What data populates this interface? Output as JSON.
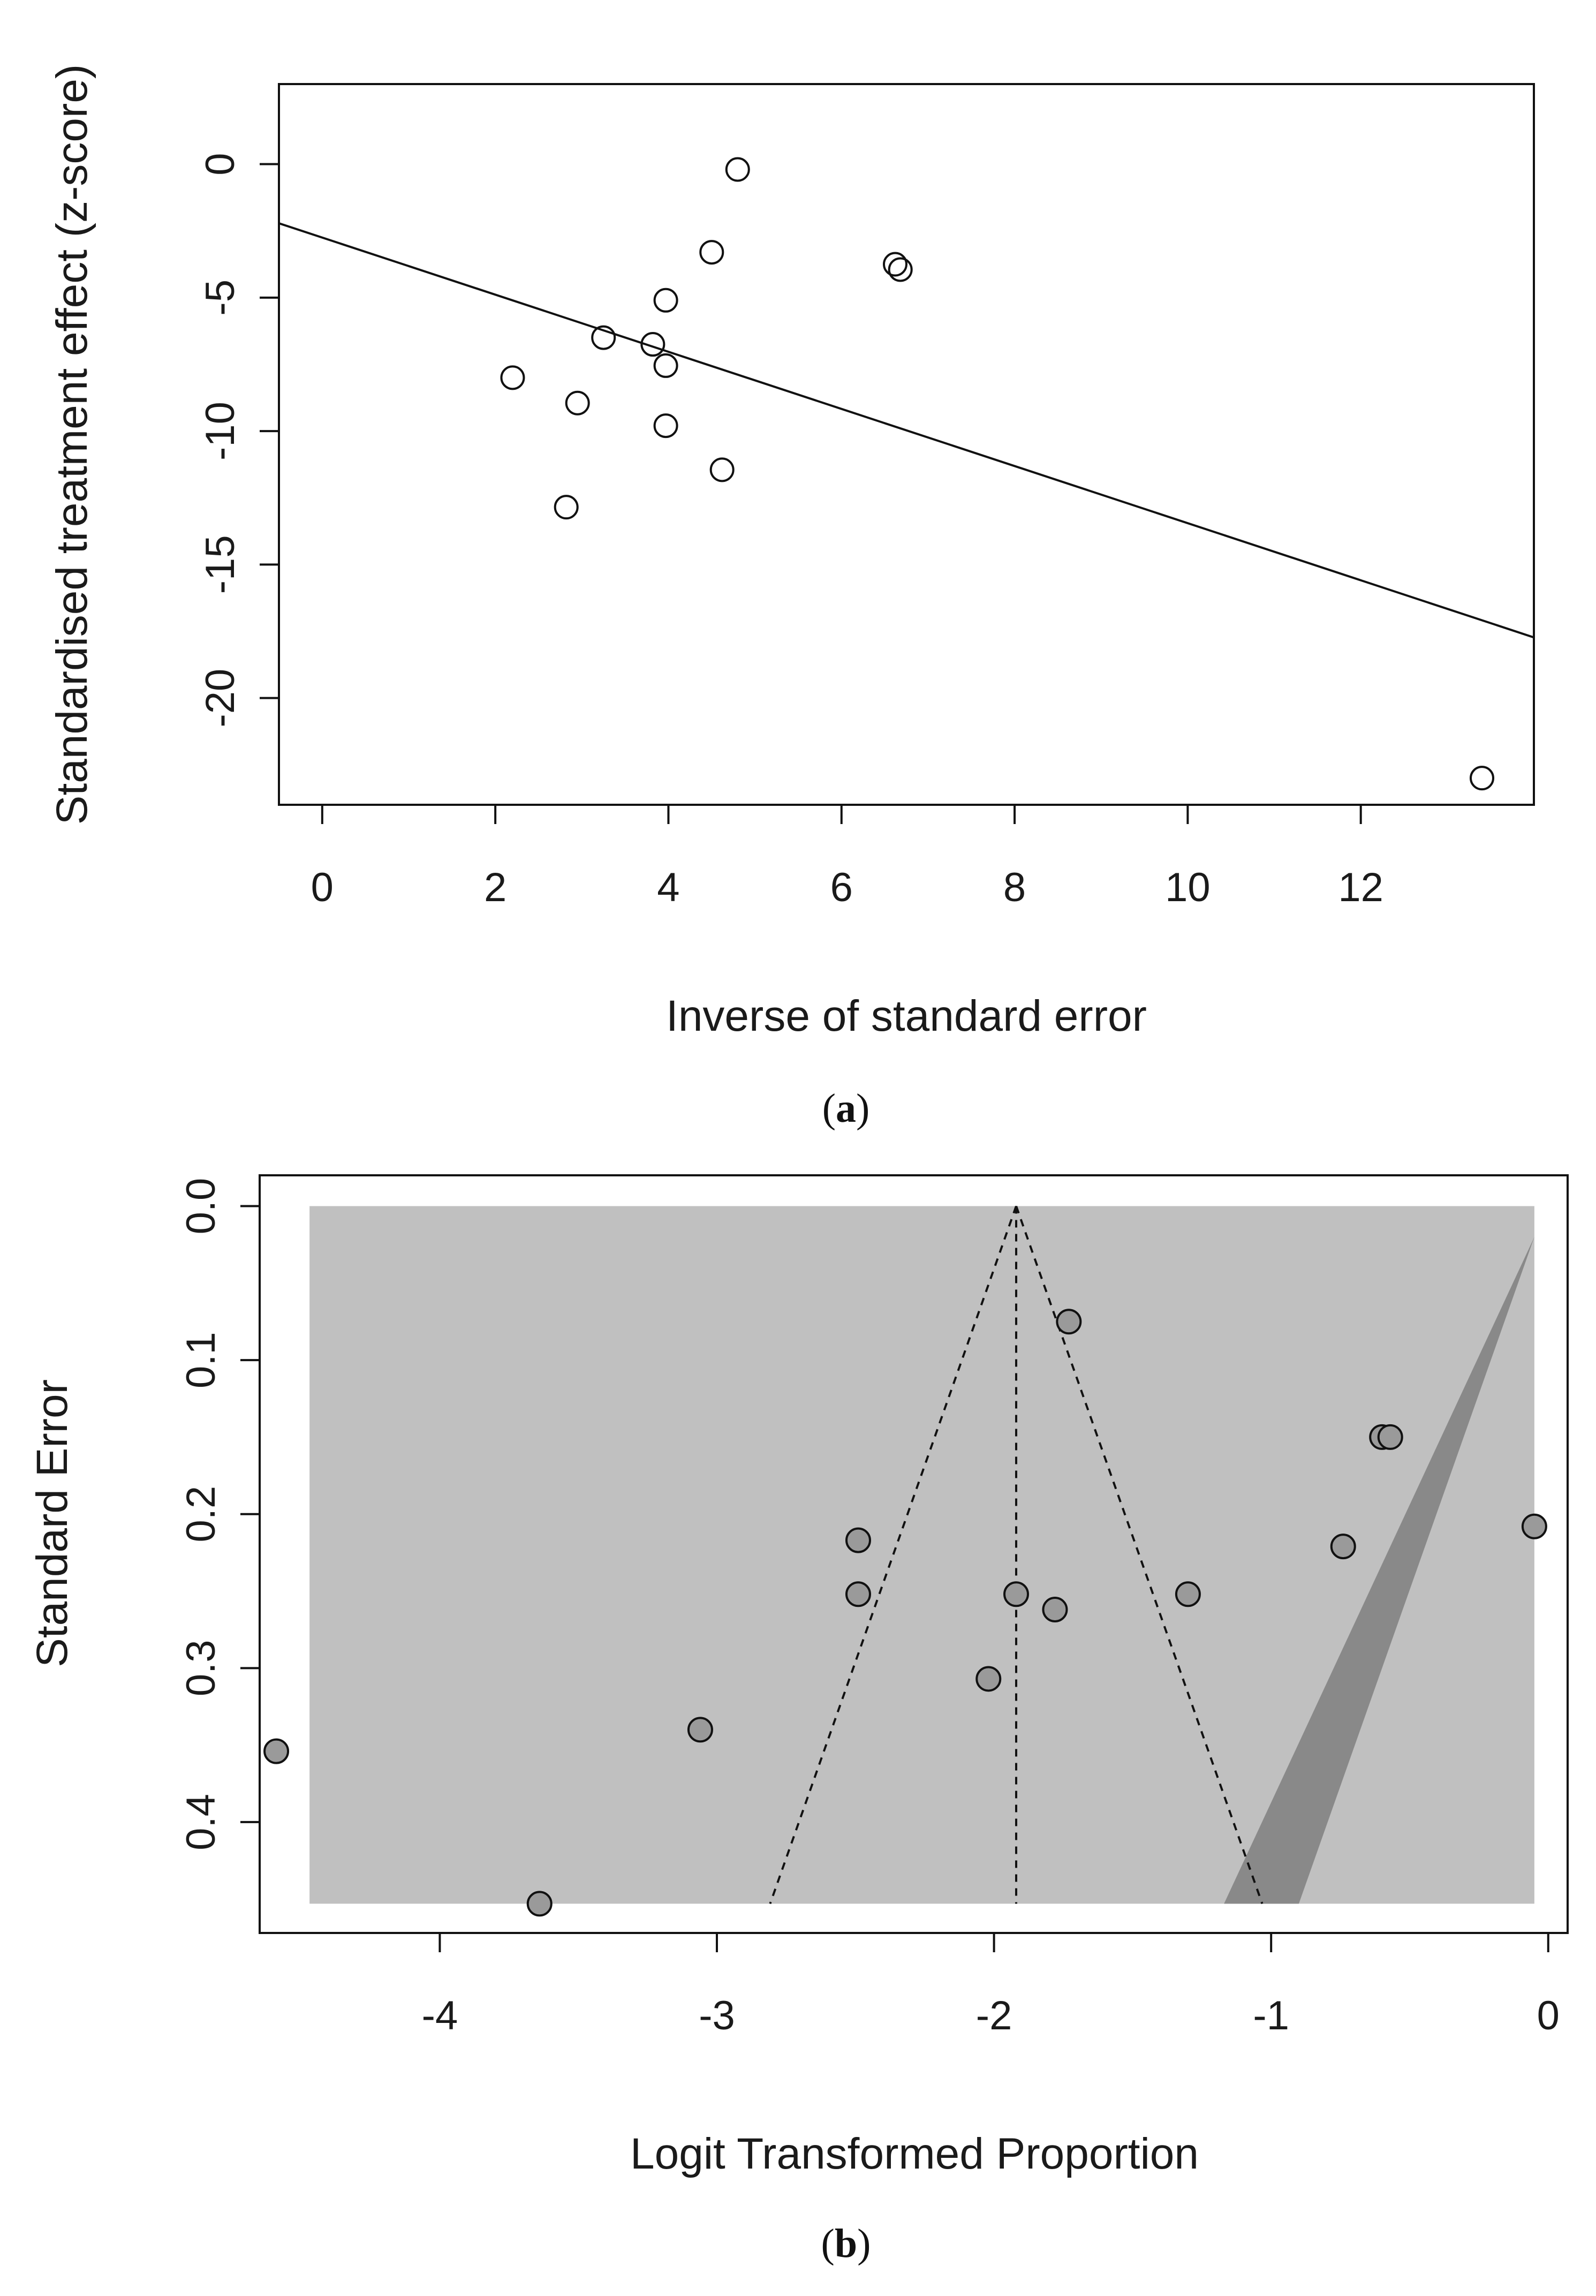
{
  "chart_data": [
    {
      "type": "scatter",
      "panel_label": "a",
      "xlabel": "Inverse of standard error",
      "ylabel": "Standardised treatment effect (z-score)",
      "xlim": [
        -0.5,
        14
      ],
      "ylim": [
        -24,
        3
      ],
      "xticks": [
        0,
        2,
        4,
        6,
        8,
        10,
        12
      ],
      "yticks": [
        0,
        -5,
        -10,
        -15,
        -20
      ],
      "points": [
        {
          "x": 4.8,
          "y": -0.2
        },
        {
          "x": 4.5,
          "y": -3.3
        },
        {
          "x": 6.62,
          "y": -3.75
        },
        {
          "x": 6.68,
          "y": -3.95
        },
        {
          "x": 3.97,
          "y": -5.1
        },
        {
          "x": 3.25,
          "y": -6.5
        },
        {
          "x": 3.82,
          "y": -6.75
        },
        {
          "x": 3.97,
          "y": -7.55
        },
        {
          "x": 2.2,
          "y": -8.0
        },
        {
          "x": 2.95,
          "y": -8.95
        },
        {
          "x": 3.97,
          "y": -9.8
        },
        {
          "x": 4.62,
          "y": -11.45
        },
        {
          "x": 2.82,
          "y": -12.85
        },
        {
          "x": 13.4,
          "y": -23.0
        }
      ],
      "regression_line": {
        "intercept": -2.75,
        "slope": -1.07
      }
    },
    {
      "type": "scatter",
      "panel_label": "b",
      "xlabel": "Logit Transformed Proportion",
      "ylabel": "Standard Error",
      "xlim": [
        -4.65,
        0.07
      ],
      "ylim": [
        0.472,
        -0.02
      ],
      "xticks": [
        -4,
        -3,
        -2,
        -1,
        0
      ],
      "yticks": [
        0.0,
        0.1,
        0.2,
        0.3,
        0.4
      ],
      "center": -1.92,
      "se_max": 0.453,
      "region_light": {
        "x_left": -4.47,
        "x_right": -0.05
      },
      "region_dark": {
        "x_at_top": -0.05,
        "se_top": 0.02,
        "x_left_at_bottom": -1.17,
        "x_right_at_bottom": -0.9
      },
      "points": [
        {
          "x": -1.73,
          "se": 0.075
        },
        {
          "x": -0.6,
          "se": 0.15
        },
        {
          "x": -0.57,
          "se": 0.15
        },
        {
          "x": -0.05,
          "se": 0.208
        },
        {
          "x": -0.74,
          "se": 0.221
        },
        {
          "x": -2.49,
          "se": 0.217
        },
        {
          "x": -2.49,
          "se": 0.252
        },
        {
          "x": -1.92,
          "se": 0.252
        },
        {
          "x": -1.3,
          "se": 0.252
        },
        {
          "x": -1.78,
          "se": 0.262
        },
        {
          "x": -2.02,
          "se": 0.307
        },
        {
          "x": -3.06,
          "se": 0.34
        },
        {
          "x": -4.59,
          "se": 0.354
        },
        {
          "x": -3.64,
          "se": 0.453
        }
      ]
    }
  ],
  "captions": {
    "a": {
      "open": "(",
      "letter": "a",
      "close": ")"
    },
    "b": {
      "open": "(",
      "letter": "b",
      "close": ")"
    }
  }
}
